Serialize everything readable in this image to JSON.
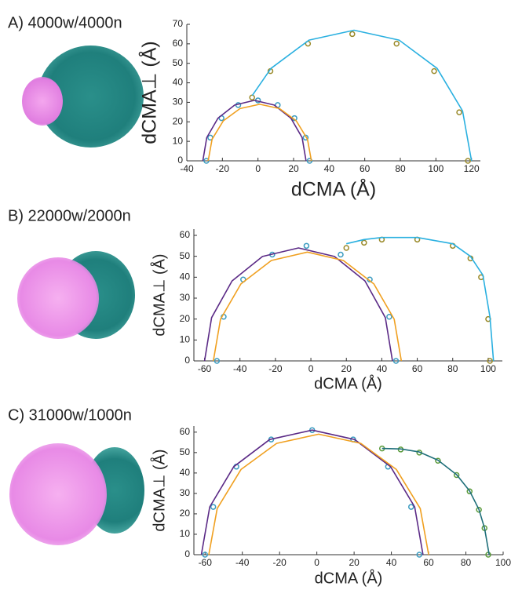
{
  "chart_data": [
    {
      "type": "line",
      "title": "A) 4000w/4000n",
      "x_label": "dCMA (Å)",
      "y_label": "dCMA⊥ (Å)",
      "xlim": [
        -40,
        125
      ],
      "xticks": [
        -40,
        -20,
        0,
        20,
        40,
        60,
        80,
        100,
        120
      ],
      "ylim": [
        0,
        70
      ],
      "yticks": [
        0,
        10,
        20,
        30,
        40,
        50,
        60,
        70
      ],
      "series": [
        {
          "color": "#3a9bc0",
          "marker": "o",
          "x": [
            -29,
            -26.8,
            -20.5,
            -11.1,
            0,
            11.1,
            20.5,
            26.8,
            29
          ],
          "values": [
            0,
            11.9,
            21.9,
            28.6,
            31,
            28.6,
            21.9,
            11.9,
            0
          ]
        },
        {
          "color": "#5b2a86",
          "x": [
            -31,
            -28.8,
            -22.5,
            -13.1,
            -2,
            9.1,
            18.5,
            24.8,
            27
          ],
          "values": [
            0,
            11.9,
            21.9,
            28.6,
            31,
            28.6,
            21.9,
            11.9,
            0
          ]
        },
        {
          "color": "#f0a020",
          "x": [
            -28,
            -25.8,
            -19.5,
            -10.1,
            1,
            12.1,
            21.5,
            27.8,
            30
          ],
          "values": [
            0,
            11.1,
            20.5,
            26.8,
            29,
            26.8,
            20.5,
            11.1,
            0
          ]
        },
        {
          "color": "#9a8a2a",
          "marker": "o",
          "x": [
            -3.3,
            7,
            28.1,
            53,
            77.9,
            99,
            113.1,
            118
          ],
          "values": [
            32.5,
            46,
            60.1,
            65,
            60.1,
            46,
            24.9,
            0
          ]
        },
        {
          "color": "#2ab0e0",
          "x": [
            -3.2,
            7.3,
            28.7,
            54,
            79.3,
            100.7,
            115,
            120
          ],
          "values": [
            33.5,
            47.4,
            61.9,
            67,
            61.9,
            47.4,
            25.6,
            0
          ]
        }
      ]
    },
    {
      "type": "line",
      "title": "B) 22000w/2000n",
      "x_label": "dCMA (Å)",
      "y_label": "dCMA⊥ (Å)",
      "xlim": [
        -66,
        108
      ],
      "xticks": [
        -60,
        -40,
        -20,
        0,
        20,
        40,
        60,
        80,
        100
      ],
      "ylim": [
        0,
        63
      ],
      "yticks": [
        0,
        10,
        20,
        30,
        40,
        50,
        60
      ],
      "series": [
        {
          "color": "#3a9bc0",
          "marker": "o",
          "x": [
            -53,
            -49.2,
            -38.2,
            -21.8,
            -2.5,
            16.8,
            33.2,
            44.2,
            48
          ],
          "values": [
            0,
            21.1,
            38.9,
            50.8,
            55,
            50.8,
            38.9,
            21.1,
            0
          ]
        },
        {
          "color": "#5b2a86",
          "x": [
            -60,
            -56,
            -44.5,
            -27.3,
            -7,
            13.3,
            30.5,
            42,
            46
          ],
          "values": [
            0,
            20.7,
            38.2,
            49.9,
            54,
            49.9,
            38.2,
            20.7,
            0
          ]
        },
        {
          "color": "#f0a020",
          "x": [
            -55,
            -51,
            -39.5,
            -22.3,
            -2,
            18.3,
            35.5,
            47,
            51
          ],
          "values": [
            0,
            19.9,
            36.8,
            48,
            52,
            48,
            36.8,
            19.9,
            0
          ]
        },
        {
          "color": "#9a8a2a",
          "marker": "o",
          "x": [
            20,
            30,
            40,
            60,
            80,
            90,
            96,
            100,
            101
          ],
          "values": [
            54,
            56.5,
            58,
            58,
            55,
            49,
            40,
            20,
            0
          ]
        },
        {
          "color": "#2ab0e0",
          "x": [
            20,
            30,
            40,
            60,
            80,
            90,
            97,
            101,
            103
          ],
          "values": [
            56,
            58,
            59,
            59,
            56,
            50,
            41,
            21,
            0
          ]
        }
      ]
    },
    {
      "type": "line",
      "title": "C) 31000w/1000n",
      "x_label": "dCMA (Å)",
      "y_label": "dCMA⊥ (Å)",
      "xlim": [
        -66,
        100
      ],
      "xticks": [
        -60,
        -40,
        -20,
        0,
        20,
        40,
        60,
        80,
        100
      ],
      "ylim": [
        0,
        63
      ],
      "yticks": [
        0,
        10,
        20,
        30,
        40,
        50,
        60
      ],
      "series": [
        {
          "color": "#3a9bc0",
          "marker": "o",
          "x": [
            -60,
            -55.6,
            -43.2,
            -24.5,
            -2.5,
            19.5,
            38.2,
            50.6,
            55
          ],
          "values": [
            0,
            23.4,
            43.1,
            56.4,
            61,
            56.4,
            43.1,
            23.4,
            0
          ]
        },
        {
          "color": "#5b2a86",
          "x": [
            -62,
            -57.5,
            -44.6,
            -25.3,
            -2.5,
            20.3,
            39.6,
            52.5,
            57
          ],
          "values": [
            0,
            23.4,
            43.1,
            56.4,
            61,
            56.4,
            43.1,
            23.4,
            0
          ]
        },
        {
          "color": "#f0a020",
          "x": [
            -58,
            -53.5,
            -40.7,
            -21.6,
            1,
            23.6,
            42.7,
            55.5,
            60
          ],
          "values": [
            0,
            22.6,
            41.7,
            54.5,
            59,
            54.5,
            41.7,
            22.6,
            0
          ]
        },
        {
          "color": "#5a9a3a",
          "marker": "o",
          "x": [
            35,
            45,
            55,
            65,
            75,
            82,
            87,
            90,
            92
          ],
          "values": [
            52,
            51.5,
            50,
            46,
            39,
            31,
            22,
            13,
            0
          ]
        },
        {
          "color": "#1f6f7a",
          "x": [
            35,
            45,
            55,
            65,
            75,
            82,
            87,
            90,
            92.5
          ],
          "values": [
            52,
            51.8,
            50.3,
            46.3,
            39.2,
            31.2,
            22.2,
            13,
            0
          ]
        }
      ]
    }
  ]
}
